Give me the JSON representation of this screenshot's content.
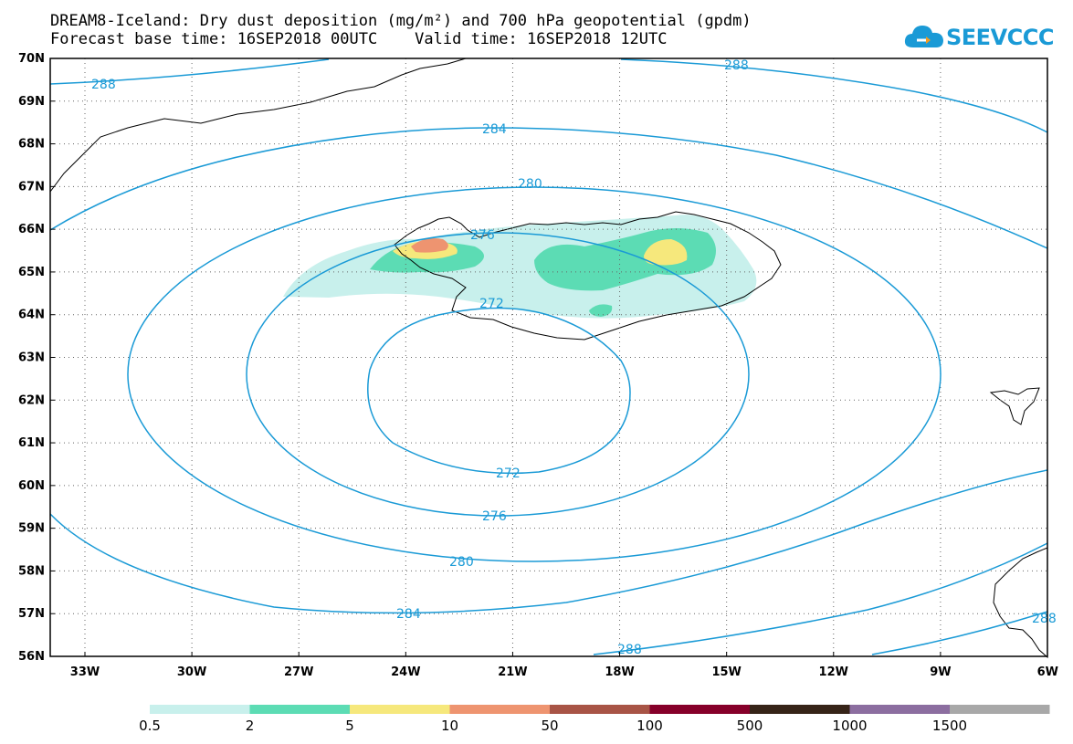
{
  "title": {
    "line1": "DREAM8-Iceland: Dry dust deposition (mg/m²) and 700 hPa geopotential (gpdm)",
    "line2": "Forecast base time: 16SEP2018 00UTC    Valid time: 16SEP2018 12UTC"
  },
  "logo": {
    "text": "SEEVCCC",
    "icon": "cloud-icon",
    "color": "#1a9ad6"
  },
  "map": {
    "lat_labels": [
      "70N",
      "69N",
      "68N",
      "67N",
      "66N",
      "65N",
      "64N",
      "63N",
      "62N",
      "61N",
      "60N",
      "59N",
      "58N",
      "57N",
      "56N"
    ],
    "lon_labels": [
      "33W",
      "30W",
      "27W",
      "24W",
      "21W",
      "18W",
      "15W",
      "12W",
      "9W",
      "6W"
    ],
    "contour_color": "#1a9ad6",
    "contour_labels": [
      "288",
      "288",
      "284",
      "280",
      "276",
      "272",
      "272",
      "276",
      "280",
      "284",
      "288",
      "288"
    ]
  },
  "legend": {
    "colors": [
      "#c8f0ec",
      "#5cdcb4",
      "#f6e87c",
      "#ee9470",
      "#a85446",
      "#86002a",
      "#362418",
      "#8c6ea0",
      "#a8a8a8"
    ],
    "labels": [
      "0.5",
      "2",
      "5",
      "10",
      "50",
      "100",
      "500",
      "1000",
      "1500"
    ]
  }
}
